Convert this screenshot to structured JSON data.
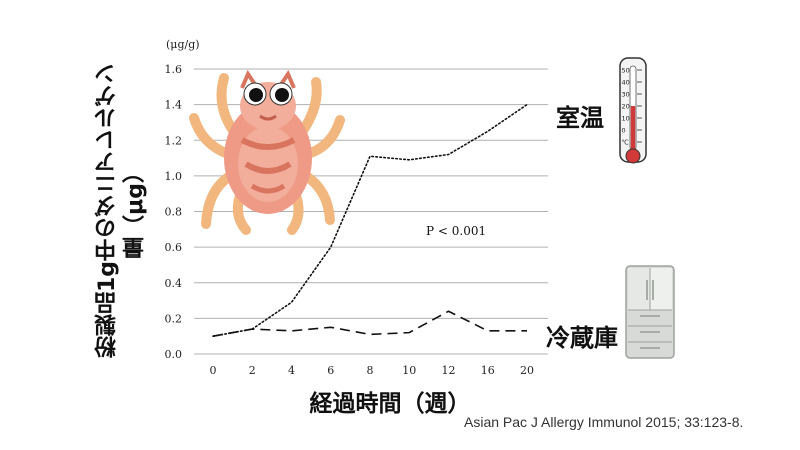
{
  "chart_data": {
    "type": "line",
    "x": [
      0,
      2,
      4,
      6,
      8,
      10,
      12,
      16,
      20
    ],
    "ylim": [
      0,
      1.6
    ],
    "yticks": [
      "0.0",
      "0.2",
      "0.4",
      "0.6",
      "0.8",
      "1.0",
      "1.2",
      "1.4",
      "1.6"
    ],
    "grid": true,
    "unit_label": "(μg/g)",
    "ylabel": "粉製品1g中のダニアレルゲン量（μg）",
    "xlabel": "経過時間（週）",
    "annotation": "P < 0.001",
    "series": [
      {
        "name": "室温",
        "style": "dotted",
        "values": [
          0.1,
          0.14,
          0.29,
          0.6,
          1.11,
          1.09,
          1.12,
          1.25,
          1.4
        ]
      },
      {
        "name": "冷蔵庫",
        "style": "dashed",
        "values": [
          0.1,
          0.14,
          0.13,
          0.15,
          0.11,
          0.12,
          0.24,
          0.13,
          0.13
        ]
      }
    ]
  },
  "citation": "Asian Pac J Allergy Immunol 2015; 33:123-8.",
  "icons": {
    "thermometer": "thermometer-icon",
    "mite": "dust-mite-illustration",
    "fridge": "refrigerator-icon"
  },
  "thermometer_scale": [
    "50",
    "40",
    "30",
    "20",
    "10",
    "0",
    "℃"
  ],
  "colors": {
    "grid": "#b0b0b0",
    "mite_body": "#ef9a86",
    "mite_legs": "#f2b77e",
    "thermo_red": "#d23a3a"
  }
}
